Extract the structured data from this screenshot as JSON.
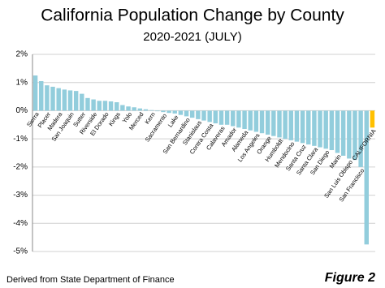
{
  "chart_data": {
    "type": "bar",
    "title": "California Population Change by County",
    "subtitle": "2020-2021 (JULY)",
    "source": "Derived from State Department of Finance",
    "figure_label": "Figure 2",
    "categories": [
      "Sierra",
      null,
      "Placer",
      null,
      "Madera",
      null,
      "San Joaquin",
      null,
      "Sutter",
      null,
      "Riverside",
      null,
      "El Dorado",
      null,
      "Kings",
      null,
      "Yolo",
      null,
      "Merced",
      null,
      "Kern",
      null,
      "Sacramento",
      null,
      "Lake",
      null,
      "San Bernardino",
      null,
      "Stanislaus",
      null,
      "Contra Costa",
      null,
      "Calaveras",
      null,
      "Amador",
      null,
      "Alameda",
      null,
      "Los Angeles",
      null,
      "Orange",
      null,
      "Humboldt",
      null,
      "Mendocino",
      null,
      "Santa Cruz",
      null,
      "Santa Clara",
      null,
      "San Diego",
      null,
      "Marin",
      null,
      "San Luis Obispo",
      null,
      "San Francisco",
      null,
      "CALIFORNIA"
    ],
    "values": [
      1.25,
      1.05,
      0.9,
      0.85,
      0.8,
      0.75,
      0.72,
      0.7,
      0.6,
      0.45,
      0.4,
      0.35,
      0.35,
      0.33,
      0.3,
      0.2,
      0.15,
      0.12,
      0.08,
      0.05,
      0.02,
      -0.02,
      -0.05,
      -0.08,
      -0.1,
      -0.15,
      -0.2,
      -0.25,
      -0.3,
      -0.35,
      -0.4,
      -0.45,
      -0.5,
      -0.5,
      -0.55,
      -0.6,
      -0.65,
      -0.7,
      -0.75,
      -0.8,
      -0.85,
      -0.9,
      -0.95,
      -1.0,
      -1.05,
      -1.1,
      -1.15,
      -1.2,
      -1.25,
      -1.3,
      -1.35,
      -1.4,
      -1.5,
      -1.6,
      -1.7,
      -1.75,
      -2.0,
      -4.75,
      -0.6
    ],
    "colors": [
      "#92cddc",
      "#92cddc",
      "#92cddc",
      "#92cddc",
      "#92cddc",
      "#92cddc",
      "#92cddc",
      "#92cddc",
      "#92cddc",
      "#92cddc",
      "#92cddc",
      "#92cddc",
      "#92cddc",
      "#92cddc",
      "#92cddc",
      "#92cddc",
      "#92cddc",
      "#92cddc",
      "#92cddc",
      "#92cddc",
      "#92cddc",
      "#92cddc",
      "#92cddc",
      "#92cddc",
      "#92cddc",
      "#92cddc",
      "#92cddc",
      "#92cddc",
      "#92cddc",
      "#92cddc",
      "#92cddc",
      "#92cddc",
      "#92cddc",
      "#92cddc",
      "#92cddc",
      "#92cddc",
      "#92cddc",
      "#92cddc",
      "#92cddc",
      "#92cddc",
      "#92cddc",
      "#92cddc",
      "#92cddc",
      "#92cddc",
      "#92cddc",
      "#92cddc",
      "#92cddc",
      "#92cddc",
      "#92cddc",
      "#92cddc",
      "#92cddc",
      "#92cddc",
      "#92cddc",
      "#92cddc",
      "#92cddc",
      "#92cddc",
      "#92cddc",
      "#92cddc",
      "#ffc000"
    ],
    "ylim": [
      -5,
      2
    ],
    "yticks": [
      {
        "value": 2,
        "label": "2%"
      },
      {
        "value": 1,
        "label": "1%"
      },
      {
        "value": 0,
        "label": "0%"
      },
      {
        "value": -1,
        "label": "-1%"
      },
      {
        "value": -2,
        "label": "-2%"
      },
      {
        "value": -3,
        "label": "-3%"
      },
      {
        "value": -4,
        "label": "-4%"
      },
      {
        "value": -5,
        "label": "-5%"
      }
    ],
    "grid": true
  }
}
